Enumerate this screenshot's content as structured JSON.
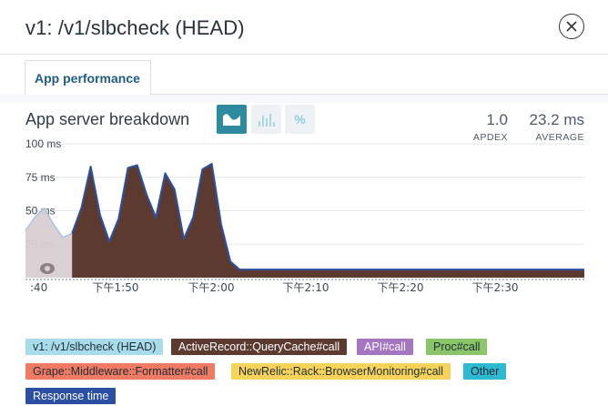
{
  "window": {
    "title": "v1: /v1/slbcheck (HEAD)"
  },
  "tabs": [
    {
      "label": "App performance",
      "active": true
    }
  ],
  "section": {
    "title": "App server breakdown",
    "toggles": [
      {
        "name": "area-chart-icon",
        "active": true
      },
      {
        "name": "bar-chart-icon",
        "active": false
      },
      {
        "name": "percent-toggle",
        "label": "%",
        "active": false
      }
    ]
  },
  "metrics": {
    "apdex": {
      "value": "1.0",
      "label": "APDEX"
    },
    "average": {
      "value": "23.2 ms",
      "label": "AVERAGE"
    }
  },
  "chart_data": {
    "type": "area",
    "y_tick_labels": [
      "100 ms",
      "75 ms",
      "50 ms",
      "25 ms"
    ],
    "y_ticks": [
      100,
      75,
      50,
      25
    ],
    "ylim": [
      0,
      100
    ],
    "x_tick_labels": [
      ":40",
      "下午1:50",
      "下午2:00",
      "下午2:10",
      "下午2:20",
      "下午2:30"
    ],
    "grid": true,
    "series": [
      {
        "name": "v1: /v1/slbcheck (HEAD)",
        "color": "#d8cfd2",
        "values": [
          35,
          45,
          52,
          40,
          30,
          33
        ]
      },
      {
        "name": "ActiveRecord::QueryCache#call",
        "color": "#5c3a30",
        "values": [
          0,
          0,
          0,
          0,
          0,
          0,
          52,
          83,
          47,
          27,
          44,
          82,
          84,
          62,
          45,
          78,
          66,
          29,
          45,
          81,
          85,
          40,
          12,
          6,
          6,
          6,
          6,
          6,
          6,
          6,
          6,
          6,
          6,
          6,
          6,
          6,
          6,
          6,
          6,
          6,
          6,
          6,
          6,
          6,
          6,
          6,
          6,
          6,
          6,
          6,
          6,
          6,
          6,
          6,
          6,
          6,
          6,
          6,
          6,
          6,
          6
        ]
      },
      {
        "name": "Response time",
        "color": "#2a4fa3",
        "values": [
          35,
          45,
          52,
          40,
          30,
          33,
          52,
          83,
          47,
          27,
          44,
          82,
          84,
          62,
          45,
          78,
          66,
          29,
          45,
          81,
          85,
          40,
          12,
          6,
          6,
          6,
          6,
          6,
          6,
          6,
          6,
          6,
          6,
          6,
          6,
          6,
          6,
          6,
          6,
          6,
          6,
          6,
          6,
          6,
          6,
          6,
          6,
          6,
          6,
          6,
          6,
          6,
          6,
          6,
          6,
          6,
          6,
          6,
          6,
          6,
          6
        ]
      }
    ]
  },
  "legend": [
    {
      "label": "v1: /v1/slbcheck (HEAD)",
      "bg": "#a9dcea",
      "fg": "#1f2d35"
    },
    {
      "label": "ActiveRecord::QueryCache#call",
      "bg": "#5c3a30",
      "fg": "#ffffff"
    },
    {
      "label": "API#call",
      "bg": "#a476c2",
      "fg": "#ffffff"
    },
    {
      "label": "Proc#call",
      "bg": "#8bc56a",
      "fg": "#1f2d35"
    },
    {
      "label": "Grape::Middleware::Formatter#call",
      "bg": "#ef7b64",
      "fg": "#1f2d35"
    },
    {
      "label": "NewRelic::Rack::BrowserMonitoring#call",
      "bg": "#f7d35a",
      "fg": "#1f2d35"
    },
    {
      "label": "Other",
      "bg": "#2fb8d2",
      "fg": "#1f2d35"
    },
    {
      "label": "Response time",
      "bg": "#2a4fa3",
      "fg": "#ffffff"
    }
  ]
}
